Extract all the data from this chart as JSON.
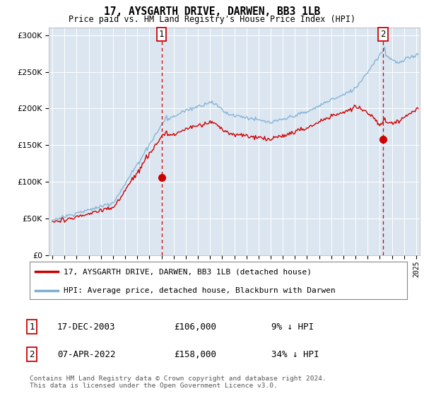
{
  "title": "17, AYSGARTH DRIVE, DARWEN, BB3 1LB",
  "subtitle": "Price paid vs. HM Land Registry's House Price Index (HPI)",
  "legend_line1": "17, AYSGARTH DRIVE, DARWEN, BB3 1LB (detached house)",
  "legend_line2": "HPI: Average price, detached house, Blackburn with Darwen",
  "annotation1_date": "17-DEC-2003",
  "annotation1_price": "£106,000",
  "annotation1_hpi": "9% ↓ HPI",
  "annotation2_date": "07-APR-2022",
  "annotation2_price": "£158,000",
  "annotation2_hpi": "34% ↓ HPI",
  "footer": "Contains HM Land Registry data © Crown copyright and database right 2024.\nThis data is licensed under the Open Government Licence v3.0.",
  "ylim": [
    0,
    310000
  ],
  "yticks": [
    0,
    50000,
    100000,
    150000,
    200000,
    250000,
    300000
  ],
  "red_color": "#cc0000",
  "blue_color": "#7bafd4",
  "bg_color": "#dce6f1",
  "sale1_x": 2004.0,
  "sale1_price": 106000,
  "sale2_x": 2022.27,
  "sale2_price": 158000,
  "xmin": 1994.7,
  "xmax": 2025.3
}
